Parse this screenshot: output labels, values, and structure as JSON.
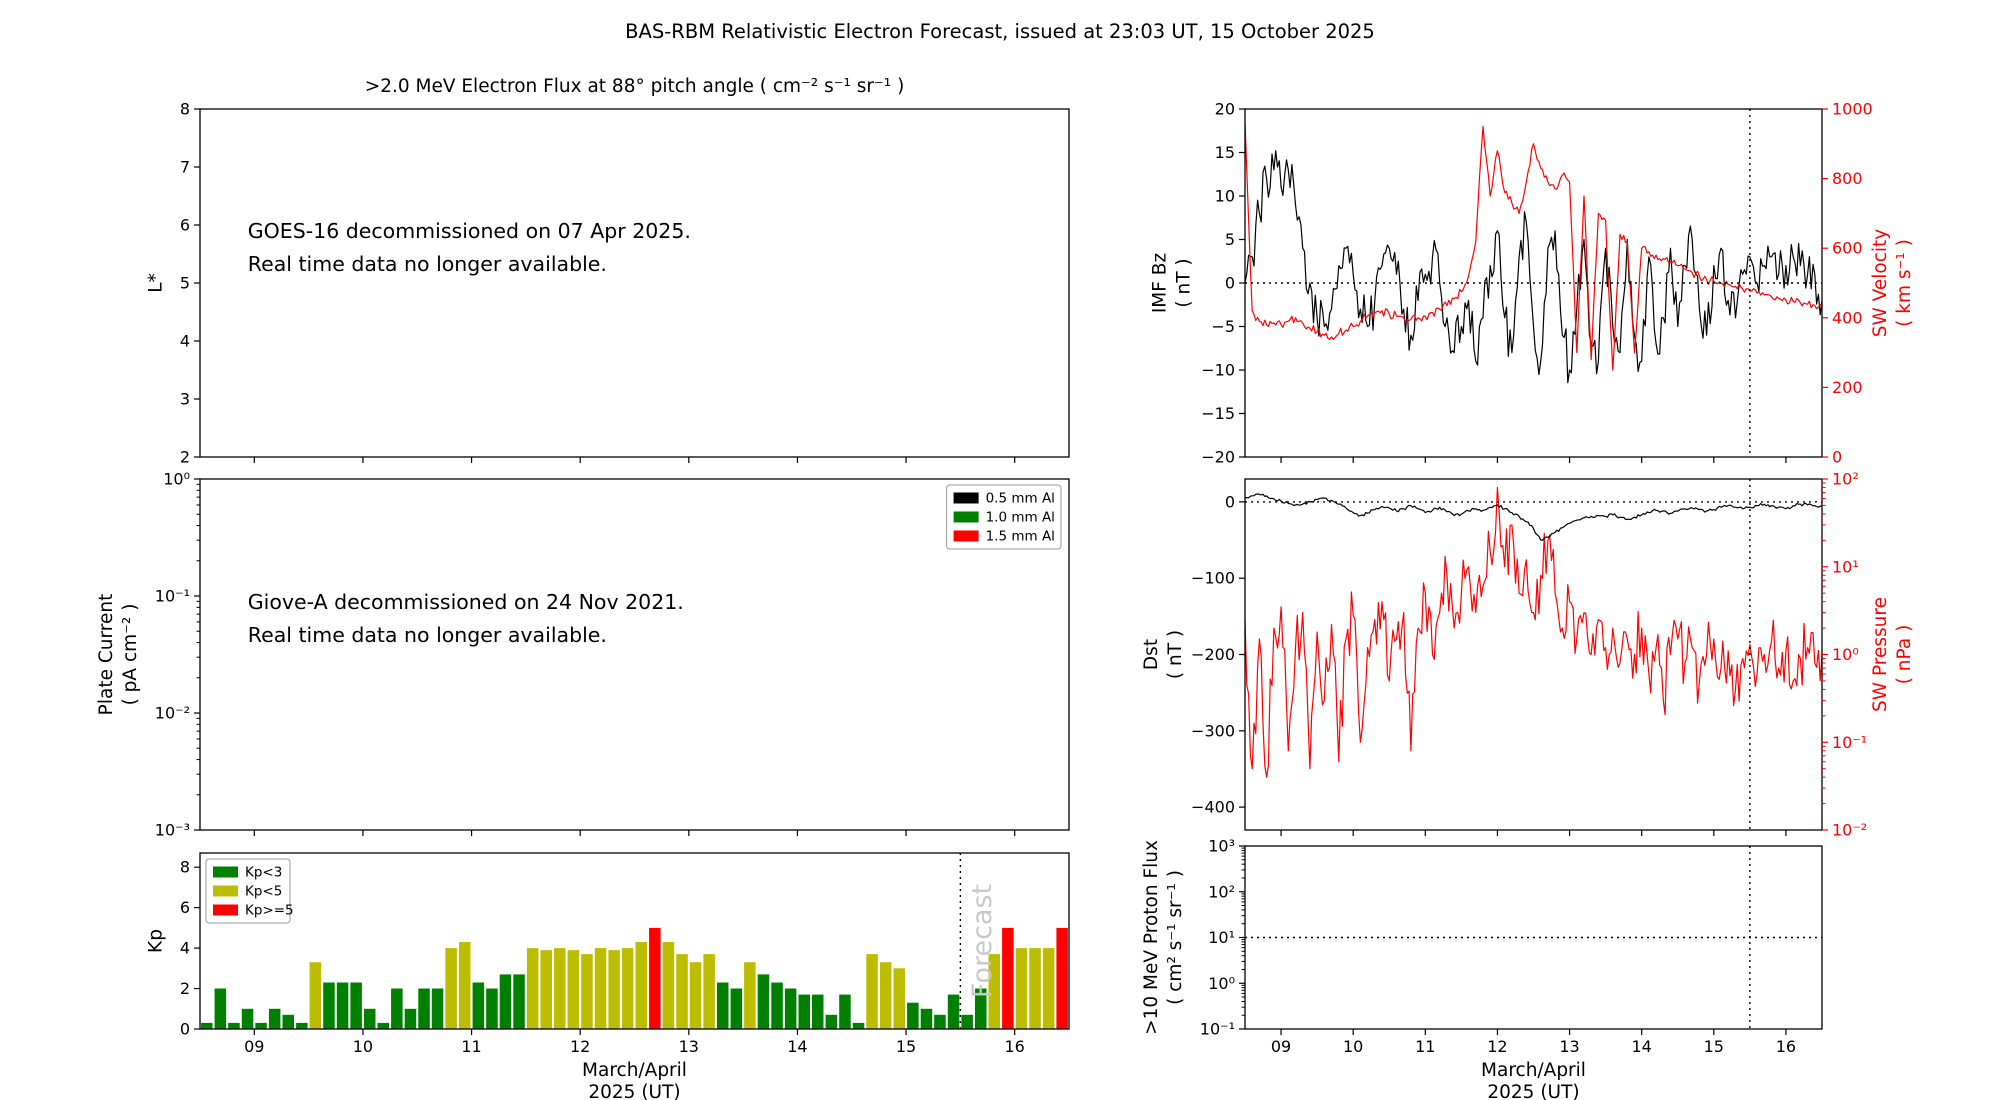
{
  "title": "BAS-RBM Relativistic Electron Forecast, issued at 23:03 UT, 15 October 2025",
  "chart_data": [
    {
      "id": "electron-flux",
      "type": "annotation",
      "title": ">2.0 MeV Electron Flux at 88° pitch angle ( cm⁻² s⁻¹ sr⁻¹ )",
      "xlim": [
        8.5,
        16.5
      ],
      "xticks": [
        9,
        10,
        11,
        12,
        13,
        14,
        15,
        16
      ],
      "left": {
        "label": [
          "L*"
        ],
        "ylim": [
          2,
          8
        ],
        "yticks": [
          2,
          3,
          4,
          5,
          6,
          7,
          8
        ]
      },
      "annotation": [
        "GOES-16 decommissioned on 07 Apr 2025.",
        "Real time data no longer available."
      ]
    },
    {
      "id": "plate-current",
      "type": "annotation",
      "xlim": [
        8.5,
        16.5
      ],
      "xticks": [
        9,
        10,
        11,
        12,
        13,
        14,
        15,
        16
      ],
      "left": {
        "label": [
          "Plate Current",
          "( pA cm⁻² )"
        ],
        "ylog": [
          -3,
          0
        ]
      },
      "legend": {
        "loc": "top-right",
        "entries": [
          {
            "label": "0.5 mm Al",
            "color": "#000000"
          },
          {
            "label": "1.0 mm Al",
            "color": "#008000"
          },
          {
            "label": "1.5 mm Al",
            "color": "#ff0000"
          }
        ]
      },
      "annotation": [
        "Giove-A decommissioned on 24 Nov 2021.",
        "Real time data no longer available."
      ]
    },
    {
      "id": "kp",
      "type": "bar",
      "xlim": [
        8.5,
        16.5
      ],
      "xticks": [
        9,
        10,
        11,
        12,
        13,
        14,
        15,
        16
      ],
      "xticklabels": [
        "09",
        "10",
        "11",
        "12",
        "13",
        "14",
        "15",
        "16"
      ],
      "xlabel": [
        "March/April",
        "2025 (UT)"
      ],
      "left": {
        "label": [
          "Kp"
        ],
        "ylim": [
          0,
          8.7
        ],
        "yticks": [
          0,
          2,
          4,
          6,
          8
        ]
      },
      "bar_start": 8.5,
      "bar_step": 0.125,
      "values": [
        0.3,
        2.0,
        0.3,
        1.0,
        0.3,
        1.0,
        0.7,
        0.3,
        3.3,
        2.3,
        2.3,
        2.3,
        1.0,
        0.3,
        2.0,
        1.0,
        2.0,
        2.0,
        4.0,
        4.3,
        2.3,
        2.0,
        2.7,
        2.7,
        4.0,
        3.9,
        4.0,
        3.9,
        3.7,
        4.0,
        3.9,
        4.0,
        4.3,
        5.0,
        4.3,
        3.7,
        3.3,
        3.7,
        2.3,
        2.0,
        3.3,
        2.7,
        2.3,
        2.0,
        1.7,
        1.7,
        0.7,
        1.7,
        0.3,
        3.7,
        3.3,
        3.0,
        1.3,
        1.0,
        0.7,
        1.7,
        0.7,
        2.0,
        3.7,
        5.0,
        4.0,
        4.0,
        4.0,
        5.0
      ],
      "thresholds": {
        "low": 3,
        "high": 5
      },
      "colors": {
        "low": "#008000",
        "mid": "#bdbd00",
        "high": "#ff0000"
      },
      "legend": {
        "loc": "top-left",
        "entries": [
          {
            "label": "Kp<3",
            "color": "#008000"
          },
          {
            "label": "Kp<5",
            "color": "#bdbd00"
          },
          {
            "label": "Kp>=5",
            "color": "#ff0000"
          }
        ]
      },
      "vline": 15.5,
      "watermark": {
        "text": "Forecast",
        "color": "#c8c8c8"
      }
    },
    {
      "id": "imf-sw",
      "type": "line",
      "xlim": [
        8.5,
        16.5
      ],
      "xticks": [
        9,
        10,
        11,
        12,
        13,
        14,
        15,
        16
      ],
      "left": {
        "label": [
          "IMF Bz",
          "( nT )"
        ],
        "ylim": [
          -20,
          20
        ],
        "yticks": [
          -20,
          -15,
          -10,
          -5,
          0,
          5,
          10,
          15,
          20
        ]
      },
      "right": {
        "label": [
          "SW Velocity",
          "( km s⁻¹ )"
        ],
        "ylim": [
          0,
          1000
        ],
        "yticks": [
          0,
          200,
          400,
          600,
          800,
          1000
        ],
        "color": "#ff0000"
      },
      "hline": 0,
      "vline": 15.5,
      "series": [
        {
          "name": "imf-bz",
          "axis": "left",
          "color": "#000000",
          "noise": 2.8,
          "values": [
            0,
            3,
            8,
            12,
            13,
            11,
            13,
            9,
            4,
            0,
            -4,
            -5,
            -3,
            2,
            4,
            1,
            -3,
            -5,
            -2,
            2,
            4,
            1,
            -3,
            -6,
            -2,
            1,
            3,
            0,
            -4,
            -8,
            -5,
            -2,
            -9,
            -4,
            2,
            6,
            -4,
            -8,
            3,
            7,
            -5,
            -9,
            4,
            6,
            -6,
            -10,
            -3,
            5,
            -7,
            -9,
            4,
            -5,
            -8,
            5,
            -6,
            -9,
            3,
            -7,
            -4,
            4,
            -5,
            2,
            5,
            -3,
            -6,
            2,
            4,
            -2,
            -4,
            1,
            3,
            0,
            2,
            3,
            1,
            2,
            3,
            2,
            1,
            1,
            -2
          ]
        },
        {
          "name": "sw-velocity",
          "axis": "right",
          "color": "#ff0000",
          "noise": 13,
          "values": [
            960,
            420,
            390,
            380,
            385,
            380,
            390,
            400,
            385,
            370,
            360,
            350,
            345,
            355,
            365,
            375,
            390,
            405,
            415,
            420,
            410,
            405,
            400,
            395,
            400,
            405,
            415,
            425,
            435,
            455,
            475,
            520,
            620,
            950,
            750,
            880,
            760,
            730,
            700,
            790,
            900,
            830,
            790,
            770,
            810,
            790,
            300,
            750,
            280,
            700,
            680,
            250,
            640,
            620,
            300,
            600,
            590,
            580,
            570,
            560,
            550,
            540,
            530,
            520,
            510,
            505,
            500,
            495,
            490,
            483,
            477,
            471,
            466,
            461,
            456,
            451,
            447,
            443,
            439,
            435,
            430
          ]
        }
      ]
    },
    {
      "id": "dst-pressure",
      "type": "line",
      "xlim": [
        8.5,
        16.5
      ],
      "xticks": [
        9,
        10,
        11,
        12,
        13,
        14,
        15,
        16
      ],
      "left": {
        "label": [
          "Dst",
          "( nT )"
        ],
        "ylim": [
          -430,
          30
        ],
        "yticks": [
          0,
          -100,
          -200,
          -300,
          -400
        ]
      },
      "right": {
        "label": [
          "SW Pressure",
          "( nPa )"
        ],
        "ylog": [
          -2,
          2
        ],
        "color": "#ff0000"
      },
      "hline": 0,
      "vline": 15.5,
      "series": [
        {
          "name": "sw-pressure",
          "axis": "right",
          "color": "#ff0000",
          "noise": 0.35,
          "values": [
            2.5,
            0.05,
            1.5,
            0.04,
            2,
            3.5,
            0.08,
            1.2,
            3,
            0.05,
            1.8,
            0.3,
            2.2,
            0.06,
            1.5,
            2.8,
            0.1,
            1.2,
            2.5,
            4,
            0.5,
            1.5,
            3,
            0.08,
            2,
            5,
            1,
            3,
            8,
            2,
            5,
            10,
            3,
            6,
            15,
            80,
            10,
            30,
            5,
            12,
            3,
            8,
            20,
            5,
            2,
            4,
            1.5,
            3,
            1,
            2.5,
            1.2,
            2,
            0.8,
            1.5,
            1,
            2,
            0.6,
            1.2,
            0.3,
            1,
            1.5,
            0.8,
            1.2,
            0.5,
            1,
            1.5,
            0.7,
            1.1,
            0.4,
            0.9,
            1.3,
            0.6,
            1,
            1.4,
            0.7,
            1.1,
            0.5,
            0.9,
            1.2,
            0.8,
            1
          ]
        },
        {
          "name": "dst",
          "axis": "left",
          "color": "#000000",
          "noise": 2,
          "values": [
            5,
            8,
            10,
            8,
            4,
            1,
            -2,
            -4,
            -3,
            0,
            3,
            5,
            2,
            -3,
            -8,
            -14,
            -18,
            -15,
            -10,
            -6,
            -8,
            -12,
            -9,
            -5,
            -9,
            -14,
            -11,
            -7,
            -13,
            -18,
            -16,
            -12,
            -9,
            -11,
            -7,
            -4,
            -9,
            -14,
            -19,
            -26,
            -35,
            -50,
            -46,
            -40,
            -34,
            -28,
            -24,
            -21,
            -19,
            -18,
            -19,
            -17,
            -20,
            -23,
            -20,
            -17,
            -14,
            -11,
            -12,
            -15,
            -12,
            -9,
            -8,
            -10,
            -12,
            -10,
            -7,
            -5,
            -7,
            -9,
            -7,
            -5,
            -3,
            -5,
            -7,
            -9,
            -5,
            -3,
            -4,
            -5,
            -5
          ]
        }
      ]
    },
    {
      "id": "proton-flux",
      "type": "line",
      "xlim": [
        8.5,
        16.5
      ],
      "xticks": [
        9,
        10,
        11,
        12,
        13,
        14,
        15,
        16
      ],
      "xticklabels": [
        "09",
        "10",
        "11",
        "12",
        "13",
        "14",
        "15",
        "16"
      ],
      "xlabel": [
        "March/April",
        "2025 (UT)"
      ],
      "left": {
        "label": [
          ">10 MeV Proton Flux",
          "( cm² s⁻¹ sr⁻¹ )"
        ],
        "ylog": [
          -1,
          3
        ]
      },
      "hline": 1,
      "vline": 15.5,
      "series": []
    }
  ]
}
